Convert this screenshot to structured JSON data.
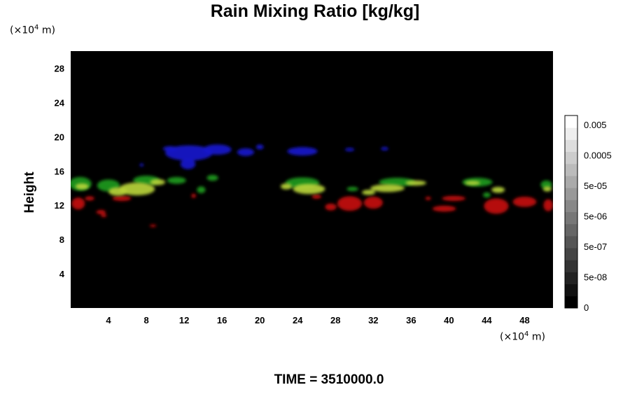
{
  "chart_data": {
    "type": "heatmap",
    "title": "Rain Mixing Ratio [kg/kg]",
    "ylabel": "Height",
    "x_unit_prefix": "(×10",
    "x_unit_exp": "4",
    "x_unit_suffix": " m)",
    "y_unit_prefix": "(×10",
    "y_unit_exp": "4",
    "y_unit_suffix": " m)",
    "xlim": [
      0,
      51
    ],
    "ylim": [
      0,
      30
    ],
    "x_ticks": [
      4,
      8,
      12,
      16,
      20,
      24,
      28,
      32,
      36,
      40,
      44,
      48
    ],
    "y_ticks": [
      4,
      8,
      12,
      16,
      20,
      24,
      28
    ],
    "background_color": "#000000",
    "colorbar": {
      "ticks": [
        {
          "label": "0.005",
          "value": 0.005
        },
        {
          "label": "0.0005",
          "value": 0.0005
        },
        {
          "label": "5e-05",
          "value": 5e-05
        },
        {
          "label": "5e-06",
          "value": 5e-06
        },
        {
          "label": "5e-07",
          "value": 5e-07
        },
        {
          "label": "5e-08",
          "value": 5e-08
        },
        {
          "label": "0",
          "value": 0
        }
      ],
      "levels": 16,
      "color_low": "#000000",
      "color_high": "#ffffff"
    },
    "layers": [
      {
        "color": "#1a1acc",
        "blobs": [
          {
            "x": 12.5,
            "y": 18.1,
            "w": 5.0,
            "h": 1.8
          },
          {
            "x": 15.5,
            "y": 18.5,
            "w": 3.0,
            "h": 1.2
          },
          {
            "x": 12.4,
            "y": 16.8,
            "w": 1.6,
            "h": 1.2
          },
          {
            "x": 10.5,
            "y": 18.6,
            "w": 1.5,
            "h": 0.6
          },
          {
            "x": 18.5,
            "y": 18.2,
            "w": 1.8,
            "h": 0.9
          },
          {
            "x": 20.0,
            "y": 18.8,
            "w": 0.8,
            "h": 0.6
          },
          {
            "x": 7.5,
            "y": 16.7,
            "w": 0.4,
            "h": 0.4
          },
          {
            "x": 24.5,
            "y": 18.3,
            "w": 3.2,
            "h": 1.0
          },
          {
            "x": 29.5,
            "y": 18.5,
            "w": 1.0,
            "h": 0.4
          },
          {
            "x": 33.2,
            "y": 18.6,
            "w": 0.8,
            "h": 0.4
          }
        ]
      },
      {
        "color": "#c40f0f",
        "blobs": [
          {
            "x": 0.8,
            "y": 12.2,
            "w": 1.4,
            "h": 1.4
          },
          {
            "x": 2.0,
            "y": 12.8,
            "w": 1.0,
            "h": 0.5
          },
          {
            "x": 3.2,
            "y": 11.2,
            "w": 1.0,
            "h": 0.5
          },
          {
            "x": 3.5,
            "y": 10.8,
            "w": 0.6,
            "h": 0.4
          },
          {
            "x": 5.4,
            "y": 12.8,
            "w": 2.0,
            "h": 0.6
          },
          {
            "x": 8.7,
            "y": 9.6,
            "w": 0.7,
            "h": 0.3
          },
          {
            "x": 13.0,
            "y": 13.1,
            "w": 0.5,
            "h": 0.5
          },
          {
            "x": 29.5,
            "y": 12.2,
            "w": 2.6,
            "h": 1.7
          },
          {
            "x": 32.0,
            "y": 12.3,
            "w": 2.0,
            "h": 1.4
          },
          {
            "x": 27.5,
            "y": 11.8,
            "w": 1.2,
            "h": 0.8
          },
          {
            "x": 26.0,
            "y": 13.0,
            "w": 1.0,
            "h": 0.5
          },
          {
            "x": 39.5,
            "y": 11.6,
            "w": 2.5,
            "h": 0.7
          },
          {
            "x": 40.5,
            "y": 12.8,
            "w": 2.5,
            "h": 0.6
          },
          {
            "x": 45.0,
            "y": 11.9,
            "w": 2.6,
            "h": 1.8
          },
          {
            "x": 48.0,
            "y": 12.4,
            "w": 2.5,
            "h": 1.2
          },
          {
            "x": 50.5,
            "y": 12.0,
            "w": 1.0,
            "h": 1.4
          },
          {
            "x": 37.8,
            "y": 12.8,
            "w": 0.6,
            "h": 0.4
          }
        ]
      },
      {
        "color": "#1f9a1f",
        "blobs": [
          {
            "x": 1.0,
            "y": 14.5,
            "w": 2.4,
            "h": 1.6
          },
          {
            "x": 4.0,
            "y": 14.3,
            "w": 2.4,
            "h": 1.4
          },
          {
            "x": 8.0,
            "y": 14.9,
            "w": 2.8,
            "h": 1.1
          },
          {
            "x": 11.2,
            "y": 14.9,
            "w": 2.0,
            "h": 0.8
          },
          {
            "x": 15.0,
            "y": 15.2,
            "w": 1.2,
            "h": 0.7
          },
          {
            "x": 13.8,
            "y": 13.8,
            "w": 0.9,
            "h": 0.8
          },
          {
            "x": 24.5,
            "y": 14.6,
            "w": 3.6,
            "h": 1.3
          },
          {
            "x": 29.8,
            "y": 13.9,
            "w": 1.2,
            "h": 0.5
          },
          {
            "x": 34.5,
            "y": 14.7,
            "w": 3.8,
            "h": 1.0
          },
          {
            "x": 43.0,
            "y": 14.7,
            "w": 3.2,
            "h": 1.0
          },
          {
            "x": 50.3,
            "y": 14.4,
            "w": 1.2,
            "h": 1.0
          },
          {
            "x": 44.0,
            "y": 13.2,
            "w": 0.8,
            "h": 0.6
          }
        ]
      },
      {
        "color": "#b8d43a",
        "blobs": [
          {
            "x": 7.0,
            "y": 13.9,
            "w": 3.8,
            "h": 1.5
          },
          {
            "x": 5.0,
            "y": 13.6,
            "w": 2.0,
            "h": 1.0
          },
          {
            "x": 1.2,
            "y": 14.2,
            "w": 1.4,
            "h": 0.7
          },
          {
            "x": 9.2,
            "y": 14.7,
            "w": 1.6,
            "h": 0.7
          },
          {
            "x": 25.2,
            "y": 13.9,
            "w": 3.4,
            "h": 1.2
          },
          {
            "x": 22.8,
            "y": 14.2,
            "w": 1.2,
            "h": 0.7
          },
          {
            "x": 33.5,
            "y": 14.0,
            "w": 3.6,
            "h": 0.9
          },
          {
            "x": 31.5,
            "y": 13.5,
            "w": 1.4,
            "h": 0.6
          },
          {
            "x": 36.5,
            "y": 14.6,
            "w": 2.2,
            "h": 0.6
          },
          {
            "x": 45.2,
            "y": 13.8,
            "w": 1.4,
            "h": 0.7
          },
          {
            "x": 42.5,
            "y": 14.6,
            "w": 1.6,
            "h": 0.5
          },
          {
            "x": 50.4,
            "y": 13.9,
            "w": 0.9,
            "h": 0.6
          }
        ]
      }
    ],
    "time_label": "TIME = 3510000.0"
  }
}
